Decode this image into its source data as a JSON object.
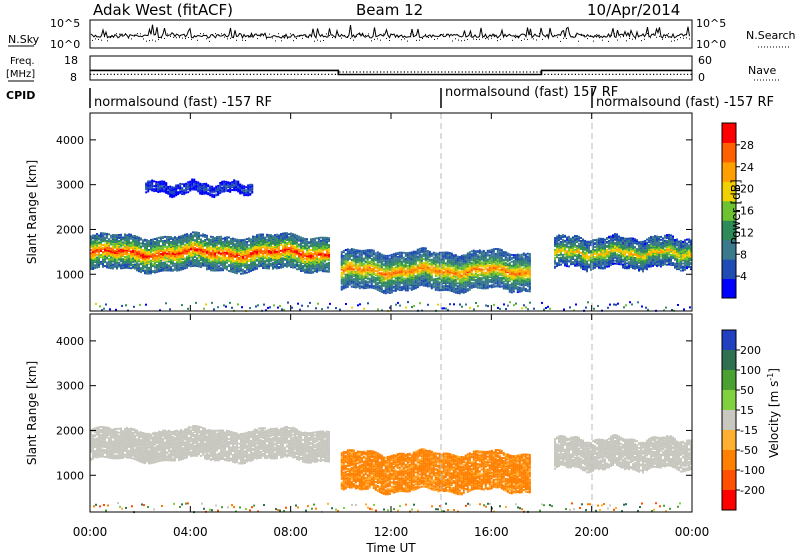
{
  "header": {
    "station": "Adak West (fitACF)",
    "beam": "Beam 12",
    "date": "10/Apr/2014"
  },
  "noise_panel": {
    "left_label": "N.Sky",
    "left_ticks": [
      "10^5",
      "10^0"
    ],
    "right_label": "N.Search",
    "right_ticks": [
      "10^5",
      "10^0"
    ]
  },
  "freq_panel": {
    "left_label_line1": "Freq.",
    "left_label_line2": "[MHz]",
    "left_ticks": [
      "18",
      "8"
    ],
    "right_label": "Nave",
    "right_ticks": [
      "60",
      "0"
    ],
    "freq_series_mhz": [
      [
        0,
        12
      ],
      [
        9.9,
        12
      ],
      [
        9.9,
        10.3
      ],
      [
        18.0,
        10.3
      ],
      [
        18.0,
        12
      ],
      [
        24,
        12
      ]
    ],
    "nave_series": [
      [
        0,
        14
      ],
      [
        9.9,
        14
      ],
      [
        9.9,
        20
      ],
      [
        18.0,
        20
      ],
      [
        18.0,
        14
      ],
      [
        24,
        14
      ]
    ]
  },
  "cpid_panel": {
    "label": "CPID",
    "segments": [
      {
        "start_hour": 0.0,
        "text": "normalsound (fast) -157 RF"
      },
      {
        "start_hour": 14.0,
        "text": "normalsound (fast) 157 RF"
      },
      {
        "start_hour": 20.0,
        "text": "normalsound (fast) -157 RF"
      }
    ]
  },
  "chart_data": [
    {
      "type": "heatmap",
      "parameter": "power",
      "ylabel": "Slant Range [km]",
      "ylim": [
        180,
        4600
      ],
      "yticks": [
        1000,
        2000,
        3000,
        4000
      ],
      "xlim": [
        0,
        24
      ],
      "colorbar": {
        "label": "Power [dB]",
        "range": [
          0,
          32
        ],
        "ticks": [
          4,
          8,
          12,
          16,
          20,
          24,
          28
        ],
        "colors": [
          "#0000ff",
          "#1e4bb4",
          "#3a7a8c",
          "#2e8b57",
          "#6cc230",
          "#f0d000",
          "#ffa000",
          "#ff6000",
          "#ff0000"
        ]
      },
      "echo_bands": [
        {
          "hours": [
            0.0,
            9.5
          ],
          "center_km": 1500,
          "halfwidth_km": 380,
          "core_db": 30
        },
        {
          "hours": [
            10.0,
            17.5
          ],
          "center_km": 1100,
          "halfwidth_km": 420,
          "core_db": 26
        },
        {
          "hours": [
            18.5,
            24.0
          ],
          "center_km": 1500,
          "halfwidth_km": 330,
          "core_db": 22
        },
        {
          "hours": [
            2.2,
            6.5
          ],
          "center_km": 2950,
          "halfwidth_km": 120,
          "core_db": 6
        }
      ]
    },
    {
      "type": "heatmap",
      "parameter": "velocity",
      "ylabel": "Slant Range [km]",
      "ylim": [
        180,
        4600
      ],
      "yticks": [
        1000,
        2000,
        3000,
        4000
      ],
      "xlim": [
        0,
        24
      ],
      "xlabel": "Time UT",
      "xticks": [
        "00:00",
        "04:00",
        "08:00",
        "12:00",
        "16:00",
        "20:00",
        "00:00"
      ],
      "colorbar": {
        "label": "Velocity [m s",
        "label_sup": "-1",
        "label_end": "]",
        "ticks": [
          "200",
          "100",
          "50",
          "15",
          "-15",
          "-50",
          "-100",
          "-200"
        ],
        "colors": [
          "#2040c0",
          "#2e7050",
          "#4aa030",
          "#80d040",
          "#c8c8c0",
          "#ffb030",
          "#ff8000",
          "#ff5000",
          "#ff0000"
        ]
      },
      "echo_bands": [
        {
          "hours": [
            0.0,
            9.5
          ],
          "center_km": 1700,
          "halfwidth_km": 330,
          "velocity": 0
        },
        {
          "hours": [
            10.0,
            17.5
          ],
          "center_km": 1100,
          "halfwidth_km": 420,
          "velocity": -60
        },
        {
          "hours": [
            18.5,
            24.0
          ],
          "center_km": 1500,
          "halfwidth_km": 330,
          "velocity": 0
        }
      ]
    }
  ]
}
